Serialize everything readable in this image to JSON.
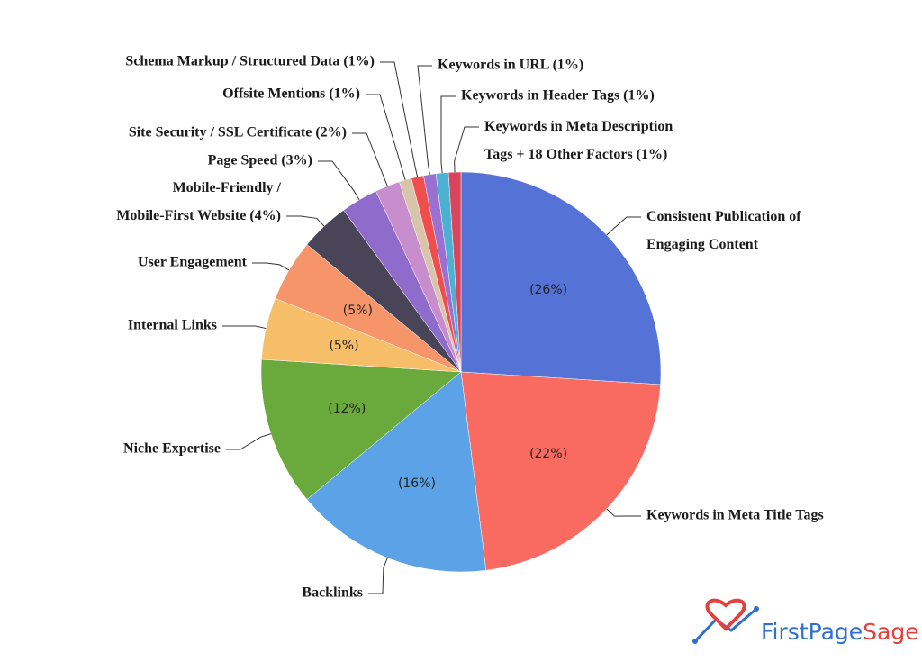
{
  "chart_data": {
    "type": "pie",
    "categories": [
      "Consistent Publication of\nEngaging Content",
      "Keywords in Meta Title Tags",
      "Backlinks",
      "Niche Expertise",
      "Internal Links",
      "User Engagement",
      "Mobile-Friendly /\nMobile-First Website (4%)",
      "Page Speed (3%)",
      "Site Security / SSL Certificate (2%)",
      "Offsite Mentions (1%)",
      "Schema Markup / Structured Data (1%)",
      "Keywords in URL (1%)",
      "Keywords in Header Tags (1%)",
      "Keywords in Meta Description\nTags + 18 Other Factors (1%)"
    ],
    "values": [
      26,
      22,
      16,
      12,
      5,
      5,
      4,
      3,
      2,
      1,
      1,
      1,
      1,
      1
    ],
    "value_labels": [
      "(26%)",
      "(22%)",
      "(16%)",
      "(12%)",
      "(5%)",
      "(5%)",
      null,
      null,
      null,
      null,
      null,
      null,
      null,
      null
    ],
    "colors": [
      "#5572d6",
      "#f96b60",
      "#5ba2e6",
      "#6aaa3c",
      "#f7be6a",
      "#f6956a",
      "#4a4459",
      "#8f6ccc",
      "#c78dcc",
      "#d8c4aa",
      "#f04d4d",
      "#9a70d2",
      "#4cb1d0",
      "#d9455f"
    ]
  },
  "logo": {
    "first": "FirstPage",
    "second": "Sage"
  }
}
